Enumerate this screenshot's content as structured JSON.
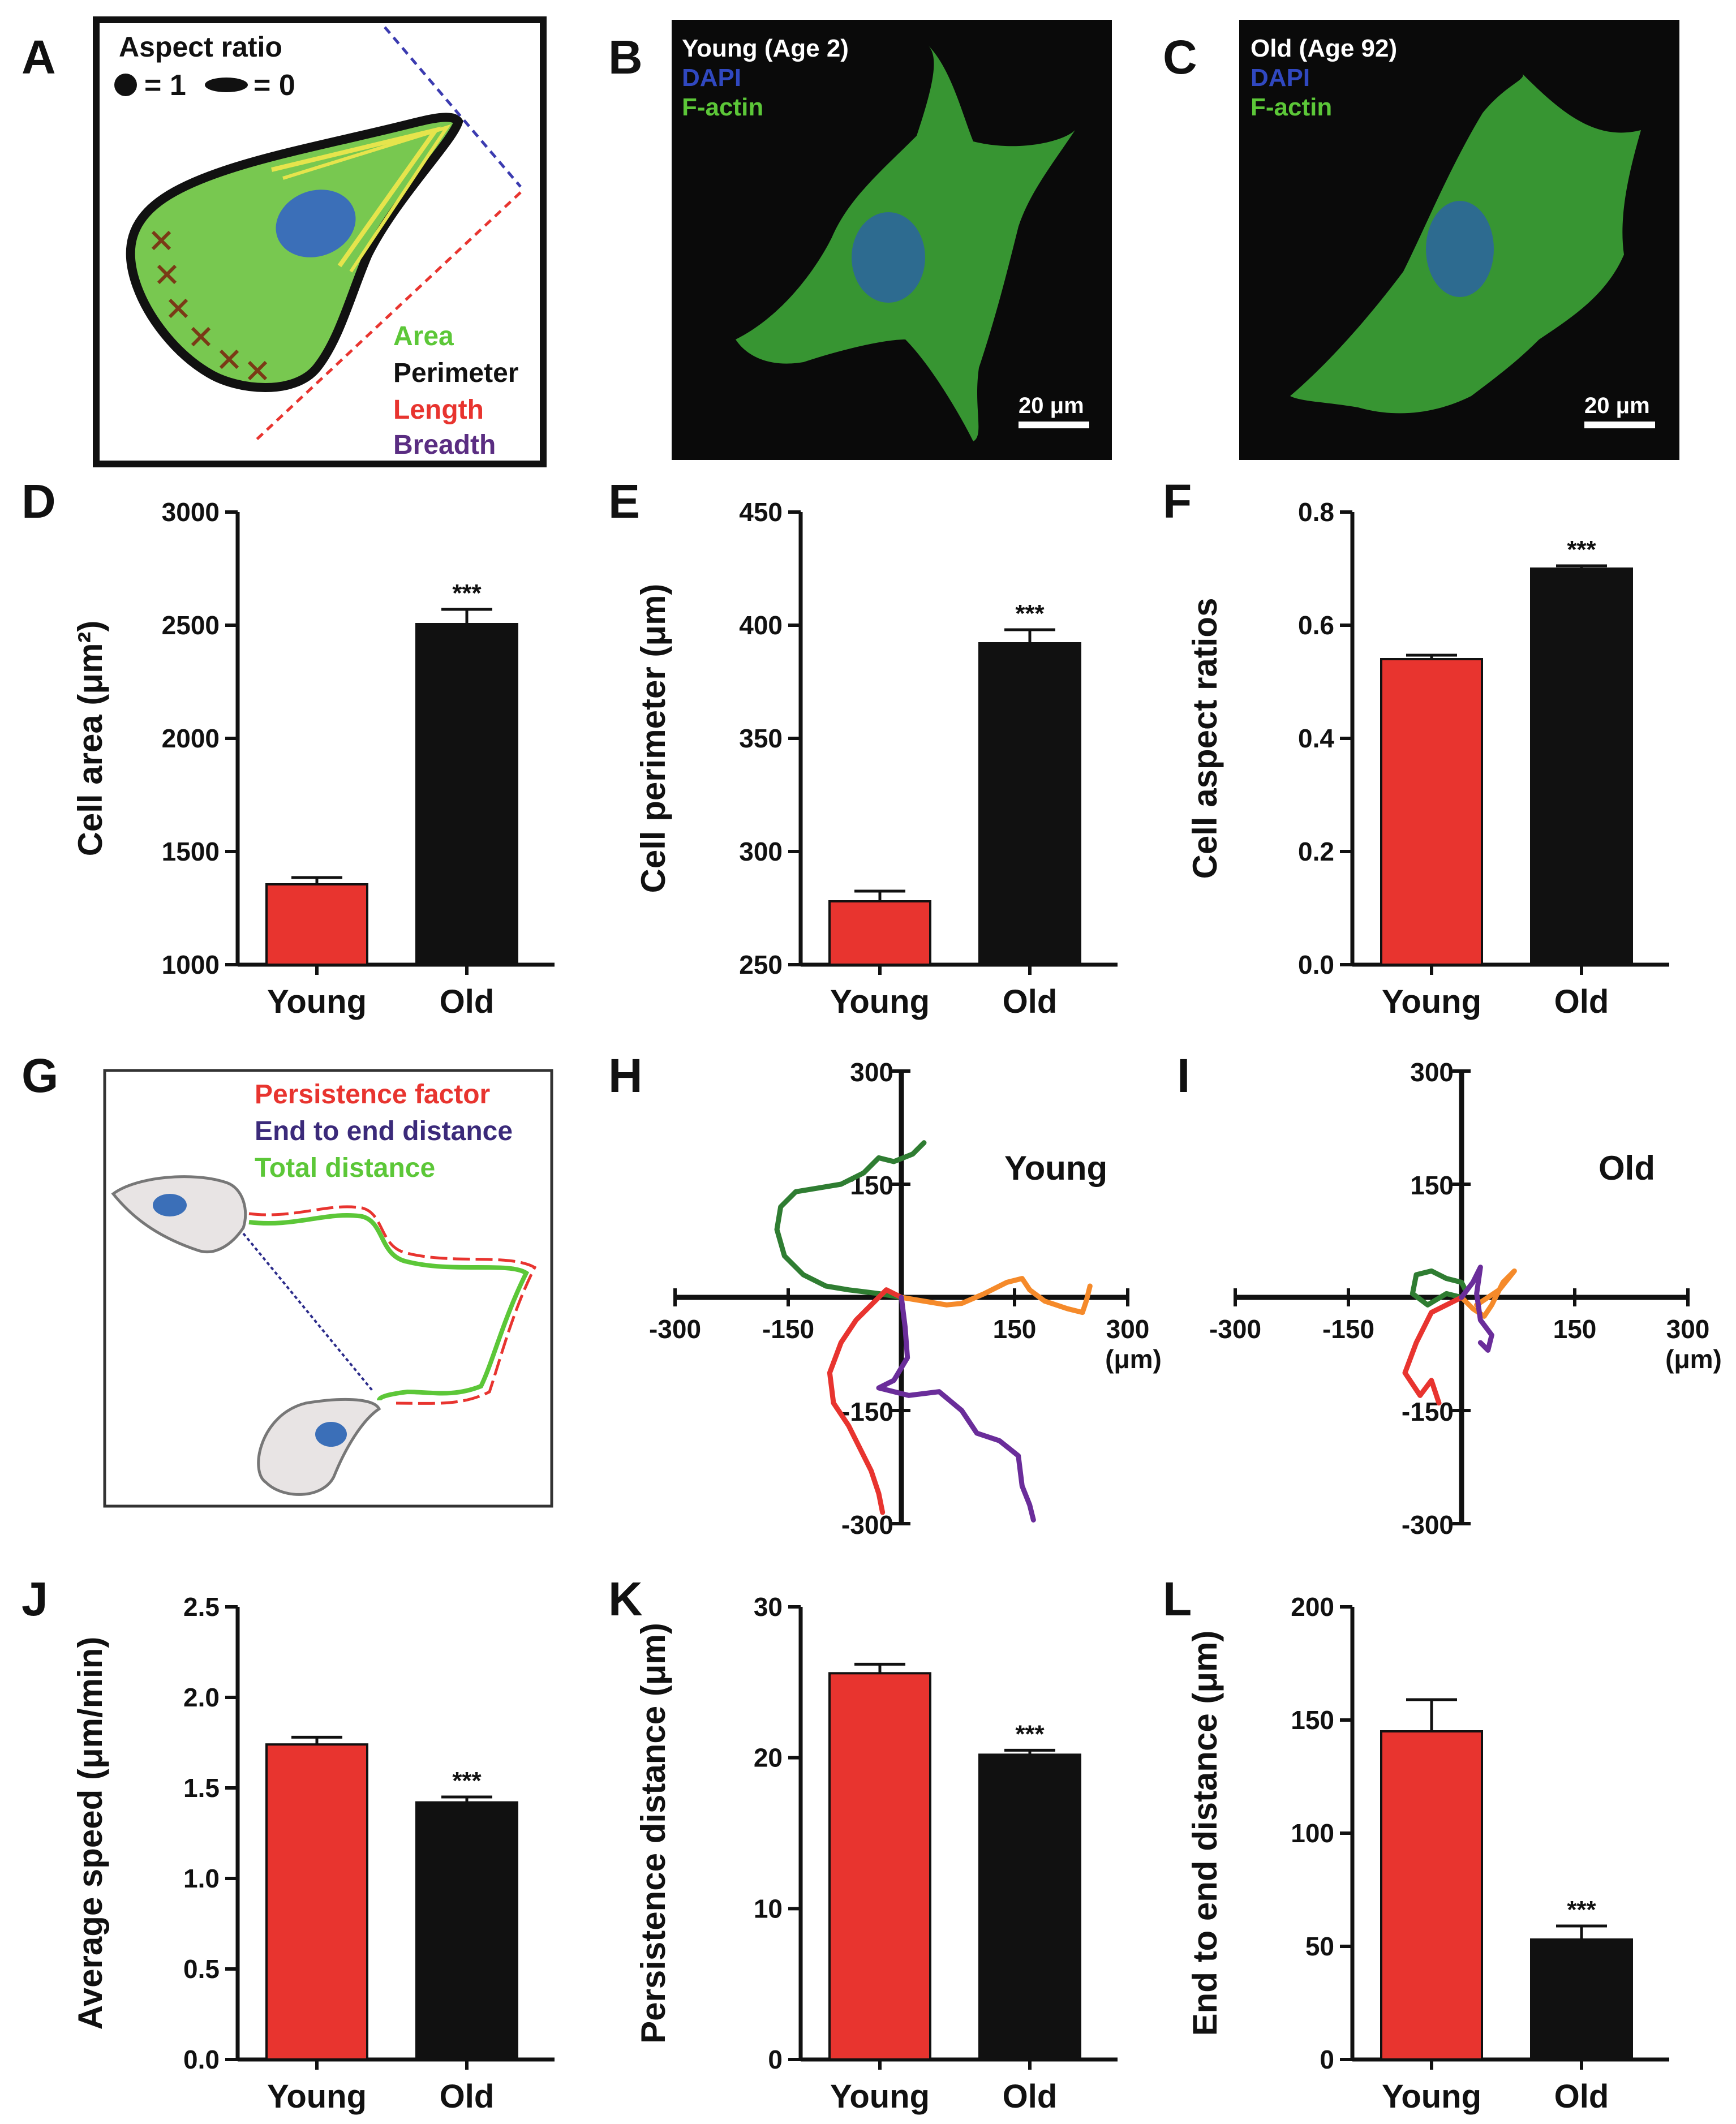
{
  "colors": {
    "young": "#e8342f",
    "old": "#111111",
    "green": "#5cc738",
    "nucleus": "#3b6fb8",
    "purple": "#5a2d82",
    "orange": "#f58a2a",
    "darkgreen": "#2f7d32"
  },
  "panels": {
    "A": {
      "letter": "A",
      "aspect_title": "Aspect ratio",
      "aspect_eq1": "= 1",
      "aspect_eq0": "= 0",
      "labels": {
        "area": "Area",
        "perimeter": "Perimeter",
        "length": "Length",
        "breadth": "Breadth"
      }
    },
    "B": {
      "letter": "B",
      "title": "Young (Age 2)",
      "dapi": "DAPI",
      "factin": "F-actin",
      "scale": "20 μm"
    },
    "C": {
      "letter": "C",
      "title": "Old (Age 92)",
      "dapi": "DAPI",
      "factin": "F-actin",
      "scale": "20 μm"
    },
    "G": {
      "letter": "G",
      "persistence": "Persistence factor",
      "end_to_end": "End to end distance",
      "total": "Total distance"
    },
    "H": {
      "letter": "H",
      "title": "Young"
    },
    "I": {
      "letter": "I",
      "title": "Old"
    }
  },
  "chart_data": [
    {
      "id": "D",
      "type": "bar",
      "title": "",
      "ylabel": "Cell area (μm²)",
      "xlabel": "",
      "categories": [
        "Young",
        "Old"
      ],
      "values": [
        1355,
        2505
      ],
      "errors": [
        30,
        65
      ],
      "ylim": [
        1000,
        3000
      ],
      "yticks": [
        "1000",
        "1500",
        "2000",
        "2500",
        "3000"
      ],
      "yticks_values": [
        1000,
        1500,
        2000,
        2500,
        3000
      ],
      "annotation": "***"
    },
    {
      "id": "E",
      "type": "bar",
      "title": "",
      "ylabel": "Cell perimeter (μm)",
      "xlabel": "",
      "categories": [
        "Young",
        "Old"
      ],
      "values": [
        278,
        392
      ],
      "errors": [
        4.5,
        6
      ],
      "ylim": [
        250,
        450
      ],
      "yticks": [
        "250",
        "300",
        "350",
        "400",
        "450"
      ],
      "yticks_values": [
        250,
        300,
        350,
        400,
        450
      ],
      "annotation": "***"
    },
    {
      "id": "F",
      "type": "bar",
      "title": "",
      "ylabel": "Cell aspect ratios",
      "xlabel": "",
      "categories": [
        "Young",
        "Old"
      ],
      "values": [
        0.54,
        0.7
      ],
      "errors": [
        0.007,
        0.005
      ],
      "ylim": [
        0,
        0.8
      ],
      "yticks": [
        "0.0",
        "0.2",
        "0.4",
        "0.6",
        "0.8"
      ],
      "yticks_values": [
        0,
        0.2,
        0.4,
        0.6,
        0.8
      ],
      "annotation": "***"
    },
    {
      "id": "J",
      "type": "bar",
      "title": "",
      "ylabel": "Average speed (μm/min)",
      "xlabel": "",
      "categories": [
        "Young",
        "Old"
      ],
      "values": [
        1.74,
        1.42
      ],
      "errors": [
        0.04,
        0.03
      ],
      "ylim": [
        0,
        2.5
      ],
      "yticks": [
        "0.0",
        "0.5",
        "1.0",
        "1.5",
        "2.0",
        "2.5"
      ],
      "yticks_values": [
        0,
        0.5,
        1.0,
        1.5,
        2.0,
        2.5
      ],
      "annotation": "***"
    },
    {
      "id": "K",
      "type": "bar",
      "title": "",
      "ylabel": "Persistence distance (μm)",
      "xlabel": "",
      "categories": [
        "Young",
        "Old"
      ],
      "values": [
        25.6,
        20.2
      ],
      "errors": [
        0.6,
        0.3
      ],
      "ylim": [
        0,
        30
      ],
      "yticks": [
        "0",
        "10",
        "20",
        "30"
      ],
      "yticks_values": [
        0,
        10,
        20,
        30
      ],
      "annotation": "***"
    },
    {
      "id": "L",
      "type": "bar",
      "title": "",
      "ylabel": "End to end distance (μm)",
      "xlabel": "",
      "categories": [
        "Young",
        "Old"
      ],
      "values": [
        145,
        53
      ],
      "errors": [
        14,
        6
      ],
      "ylim": [
        0,
        200
      ],
      "yticks": [
        "0",
        "50",
        "100",
        "150",
        "200"
      ],
      "yticks_values": [
        0,
        50,
        100,
        150,
        200
      ],
      "annotation": "***"
    },
    {
      "id": "H",
      "type": "line",
      "title": "Young",
      "xlabel": "(μm)",
      "ylabel": "",
      "xlim": [
        -300,
        300
      ],
      "ylim": [
        -300,
        300
      ],
      "xticks": [
        "-300",
        "-150",
        "150",
        "300"
      ],
      "xticks_values": [
        -300,
        -150,
        150,
        300
      ],
      "yticks": [
        "300",
        "150",
        "-150",
        "-300"
      ],
      "yticks_values": [
        300,
        150,
        -150,
        -300
      ],
      "series": [
        {
          "name": "green",
          "color": "#2f7d32",
          "points": [
            [
              0,
              0
            ],
            [
              -30,
              5
            ],
            [
              -70,
              10
            ],
            [
              -100,
              15
            ],
            [
              -130,
              30
            ],
            [
              -155,
              55
            ],
            [
              -165,
              90
            ],
            [
              -160,
              120
            ],
            [
              -140,
              140
            ],
            [
              -110,
              145
            ],
            [
              -80,
              150
            ],
            [
              -50,
              165
            ],
            [
              -30,
              185
            ],
            [
              -10,
              180
            ],
            [
              15,
              190
            ],
            [
              30,
              205
            ]
          ]
        },
        {
          "name": "orange",
          "color": "#f58a2a",
          "points": [
            [
              0,
              0
            ],
            [
              30,
              -5
            ],
            [
              60,
              -10
            ],
            [
              80,
              -8
            ],
            [
              110,
              5
            ],
            [
              140,
              20
            ],
            [
              160,
              25
            ],
            [
              170,
              10
            ],
            [
              190,
              -5
            ],
            [
              220,
              -15
            ],
            [
              240,
              -20
            ],
            [
              245,
              -5
            ],
            [
              250,
              15
            ]
          ]
        },
        {
          "name": "red",
          "color": "#e8342f",
          "points": [
            [
              0,
              0
            ],
            [
              -20,
              10
            ],
            [
              -40,
              -10
            ],
            [
              -60,
              -30
            ],
            [
              -80,
              -60
            ],
            [
              -95,
              -100
            ],
            [
              -90,
              -140
            ],
            [
              -70,
              -170
            ],
            [
              -55,
              -200
            ],
            [
              -40,
              -230
            ],
            [
              -30,
              -260
            ],
            [
              -25,
              -285
            ]
          ]
        },
        {
          "name": "purple",
          "color": "#6a2d9a",
          "points": [
            [
              0,
              0
            ],
            [
              5,
              -40
            ],
            [
              8,
              -80
            ],
            [
              -10,
              -110
            ],
            [
              -30,
              -120
            ],
            [
              10,
              -130
            ],
            [
              50,
              -125
            ],
            [
              80,
              -150
            ],
            [
              100,
              -180
            ],
            [
              130,
              -190
            ],
            [
              155,
              -210
            ],
            [
              160,
              -250
            ],
            [
              170,
              -275
            ],
            [
              175,
              -295
            ]
          ]
        }
      ]
    },
    {
      "id": "I",
      "type": "line",
      "title": "Old",
      "xlabel": "(μm)",
      "ylabel": "",
      "xlim": [
        -300,
        300
      ],
      "ylim": [
        -300,
        300
      ],
      "xticks": [
        "-300",
        "-150",
        "150",
        "300"
      ],
      "xticks_values": [
        -300,
        -150,
        150,
        300
      ],
      "yticks": [
        "300",
        "150",
        "-150",
        "-300"
      ],
      "yticks_values": [
        300,
        150,
        -150,
        -300
      ],
      "series": [
        {
          "name": "green",
          "color": "#2f7d32",
          "points": [
            [
              0,
              0
            ],
            [
              -20,
              5
            ],
            [
              -45,
              -10
            ],
            [
              -65,
              5
            ],
            [
              -60,
              30
            ],
            [
              -40,
              35
            ],
            [
              -20,
              25
            ],
            [
              0,
              20
            ],
            [
              5,
              10
            ]
          ]
        },
        {
          "name": "orange",
          "color": "#f58a2a",
          "points": [
            [
              0,
              0
            ],
            [
              15,
              -15
            ],
            [
              30,
              -25
            ],
            [
              40,
              -10
            ],
            [
              55,
              20
            ],
            [
              70,
              35
            ],
            [
              50,
              10
            ],
            [
              35,
              0
            ],
            [
              20,
              -10
            ]
          ]
        },
        {
          "name": "red",
          "color": "#e8342f",
          "points": [
            [
              0,
              0
            ],
            [
              -20,
              -10
            ],
            [
              -40,
              -20
            ],
            [
              -60,
              -60
            ],
            [
              -75,
              -100
            ],
            [
              -55,
              -130
            ],
            [
              -40,
              -110
            ],
            [
              -30,
              -140
            ]
          ]
        },
        {
          "name": "purple",
          "color": "#6a2d9a",
          "points": [
            [
              0,
              0
            ],
            [
              15,
              20
            ],
            [
              25,
              40
            ],
            [
              20,
              5
            ],
            [
              25,
              -30
            ],
            [
              40,
              -50
            ],
            [
              35,
              -70
            ],
            [
              25,
              -60
            ]
          ]
        }
      ]
    }
  ]
}
